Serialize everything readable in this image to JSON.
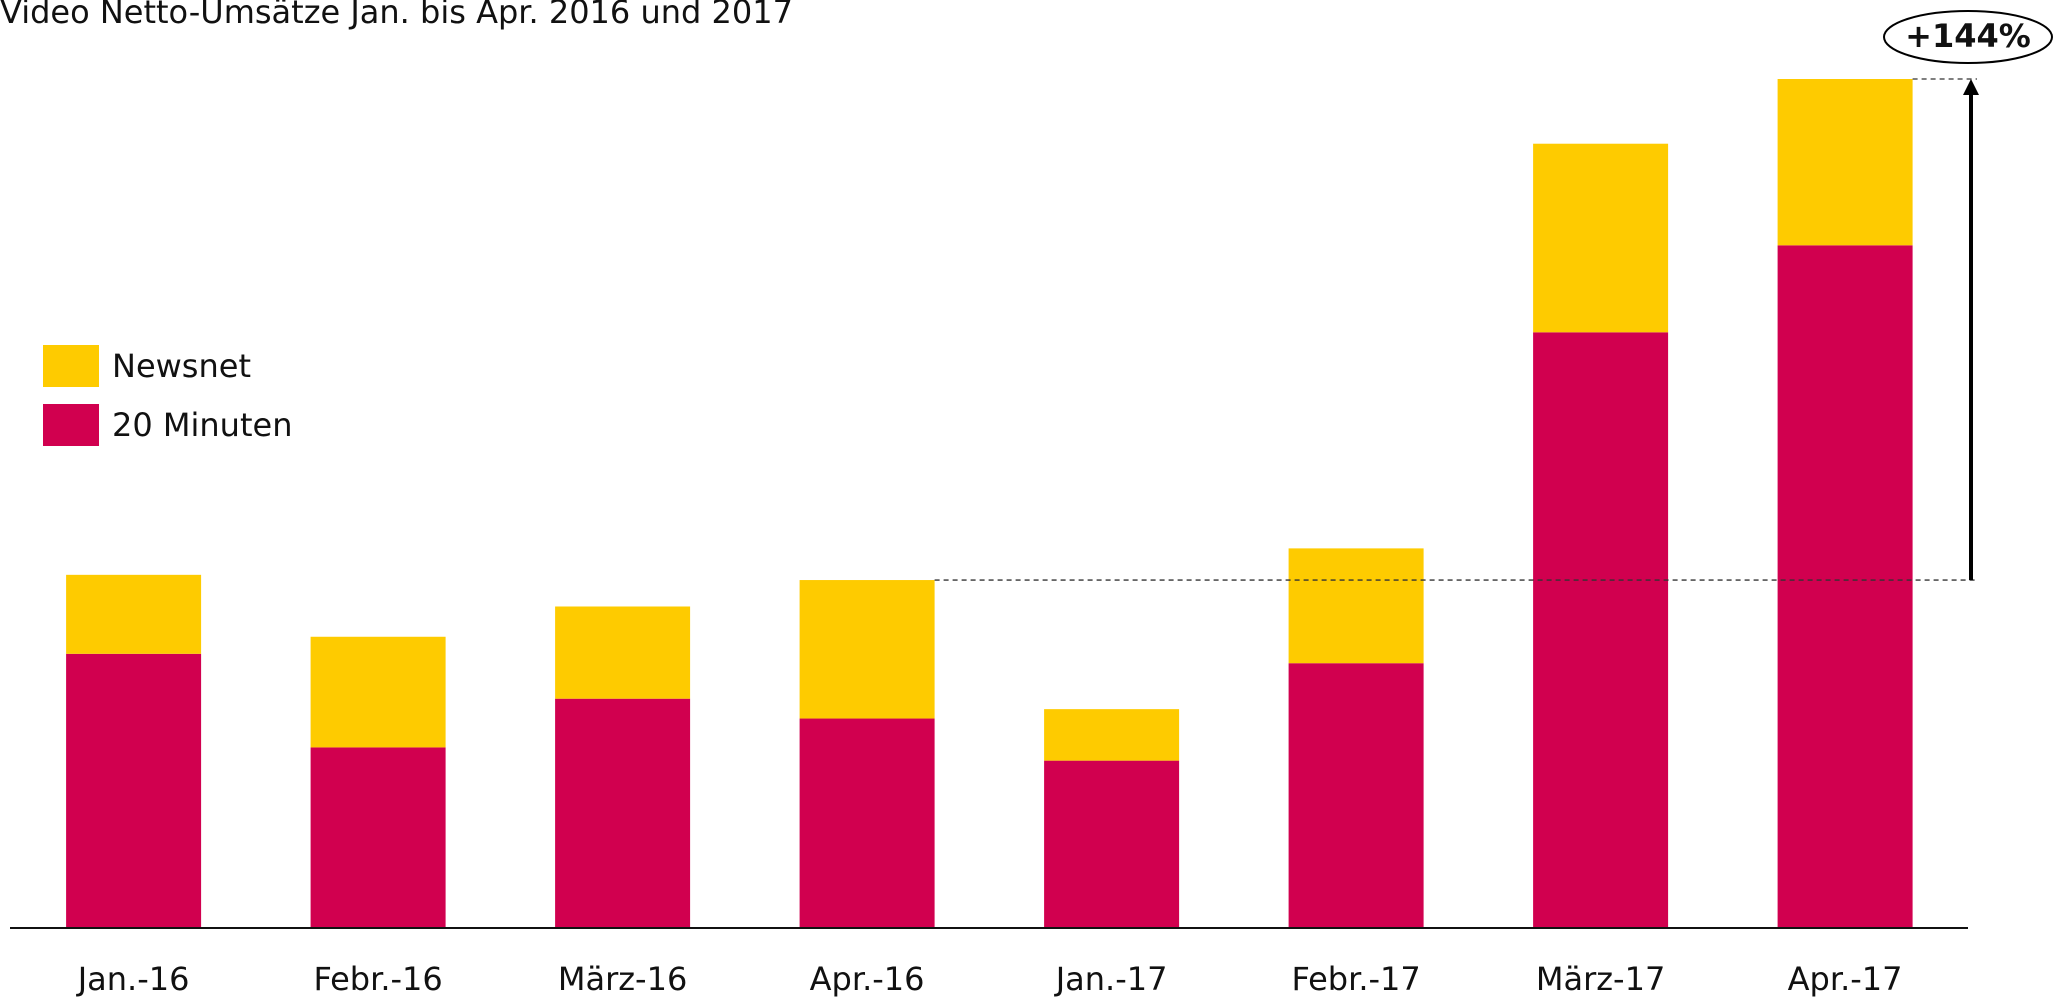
{
  "chart_data": {
    "type": "stacked_bar",
    "title": "Video Netto-Umsätze Jan. bis Apr. 2016 und 2017",
    "categories": [
      "Jan.-16",
      "Febr.-16",
      "März-16",
      "Apr.-16",
      "Jan.-17",
      "Febr.-17",
      "März-17",
      "Apr.-17"
    ],
    "series": [
      {
        "name": "20 Minuten",
        "color": "#d1004f",
        "values": [
          78.8,
          51.9,
          65.9,
          60.2,
          48.1,
          76.1,
          171.2,
          196.2
        ]
      },
      {
        "name": "Newsnet",
        "color": "#fecb00",
        "values": [
          22.7,
          31.8,
          26.5,
          39.8,
          14.8,
          33.0,
          54.2,
          47.8
        ]
      }
    ],
    "annotation": "+144%",
    "legend": "left"
  }
}
